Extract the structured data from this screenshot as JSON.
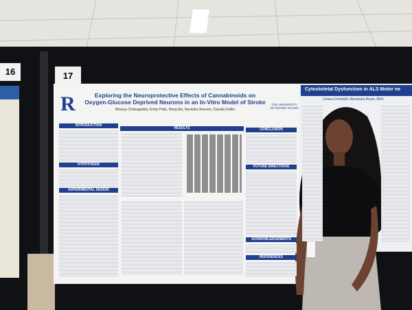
{
  "boards": [
    {
      "number": "16"
    },
    {
      "number": "17"
    }
  ],
  "main_poster": {
    "logo": "R",
    "title": "Exploring the Neuroprotective Effects of Cannabinoids on Oxygen-Glucose Deprived Neurons in an In-Vitro Model of Stroke",
    "authors": "Bhavya Chatragadda, Emily Potts, Hang Ma, Navindra Seeram, Claudia Fallini",
    "university": "THE UNIVERSITY OF RHODE ISLAND",
    "sections": [
      "INTRODUCTION",
      "HYPOTHESIS",
      "EXPERIMENTAL DESIGN",
      "RESULTS",
      "CONCLUSION",
      "FUTURE DIRECTIONS",
      "ACKNOWLEDGEMENTS",
      "REFERENCES"
    ]
  },
  "right_poster": {
    "title": "Cytoskeletal Dysfunction in ALS Motor ne",
    "authors": "Liviana Donatelli, Alexandra Bunis, Mich"
  }
}
